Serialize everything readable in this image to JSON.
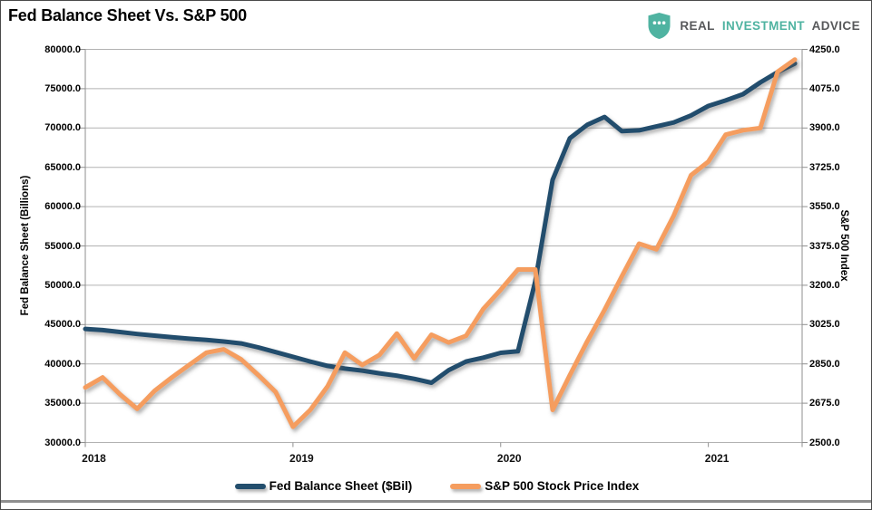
{
  "header": {
    "title": "Fed Balance Sheet Vs. S&P 500",
    "logo": {
      "icon": "shield-ellipsis-icon",
      "icon_color": "#4fb3a1",
      "words": [
        "REAL",
        "INVESTMENT",
        "ADVICE"
      ]
    }
  },
  "chart_data": {
    "type": "line",
    "title": "Fed Balance Sheet Vs. S&P 500",
    "grid": true,
    "legend_position": "bottom",
    "x": [
      "2018-01",
      "2018-02",
      "2018-03",
      "2018-04",
      "2018-05",
      "2018-06",
      "2018-07",
      "2018-08",
      "2018-09",
      "2018-10",
      "2018-11",
      "2018-12",
      "2019-01",
      "2019-02",
      "2019-03",
      "2019-04",
      "2019-05",
      "2019-06",
      "2019-07",
      "2019-08",
      "2019-09",
      "2019-10",
      "2019-11",
      "2019-12",
      "2020-01",
      "2020-02",
      "2020-03",
      "2020-04",
      "2020-05",
      "2020-06",
      "2020-07",
      "2020-08",
      "2020-09",
      "2020-10",
      "2020-11",
      "2020-12",
      "2021-01",
      "2021-02",
      "2021-03",
      "2021-04",
      "2021-05",
      "2021-06"
    ],
    "x_axis": {
      "tick_labels": [
        "2018",
        "2019",
        "2020",
        "2021"
      ]
    },
    "left_axis": {
      "label": "Fed Balance Sheet (Billions)",
      "min": 30000,
      "max": 80000,
      "step": 5000,
      "ticks": [
        "80000.0",
        "75000.0",
        "70000.0",
        "65000.0",
        "60000.0",
        "55000.0",
        "50000.0",
        "45000.0",
        "40000.0",
        "35000.0",
        "30000.0"
      ]
    },
    "right_axis": {
      "label": "S&P 500 Index",
      "min": 2500,
      "max": 4250,
      "step": 175,
      "ticks": [
        "4250.0",
        "4075.0",
        "3900.0",
        "3725.0",
        "3550.0",
        "3375.0",
        "3200.0",
        "3025.0",
        "2850.0",
        "2675.0",
        "2500.0"
      ]
    },
    "series": [
      {
        "name": "Fed Balance Sheet ($Bil)",
        "axis": "left",
        "color": "#234e6d",
        "values": [
          44450,
          44300,
          44050,
          43800,
          43600,
          43400,
          43200,
          43050,
          42850,
          42600,
          42100,
          41500,
          40900,
          40300,
          39750,
          39400,
          39150,
          38800,
          38500,
          38100,
          37600,
          39200,
          40300,
          40800,
          41400,
          41600,
          50500,
          63400,
          68700,
          70400,
          71400,
          69600,
          69700,
          70200,
          70700,
          71600,
          72800,
          73500,
          74300,
          75800,
          77100,
          78200
        ]
      },
      {
        "name": "S&P 500 Stock Price Index",
        "axis": "right",
        "color": "#f59d5f",
        "values": [
          2745,
          2790,
          2715,
          2650,
          2730,
          2790,
          2845,
          2900,
          2915,
          2870,
          2800,
          2725,
          2570,
          2645,
          2750,
          2900,
          2845,
          2890,
          2985,
          2875,
          2980,
          2945,
          2975,
          3095,
          3180,
          3270,
          3270,
          2645,
          2800,
          2950,
          3090,
          3240,
          3385,
          3360,
          3510,
          3690,
          3750,
          3870,
          3890,
          3900,
          4150,
          4205
        ]
      }
    ]
  }
}
